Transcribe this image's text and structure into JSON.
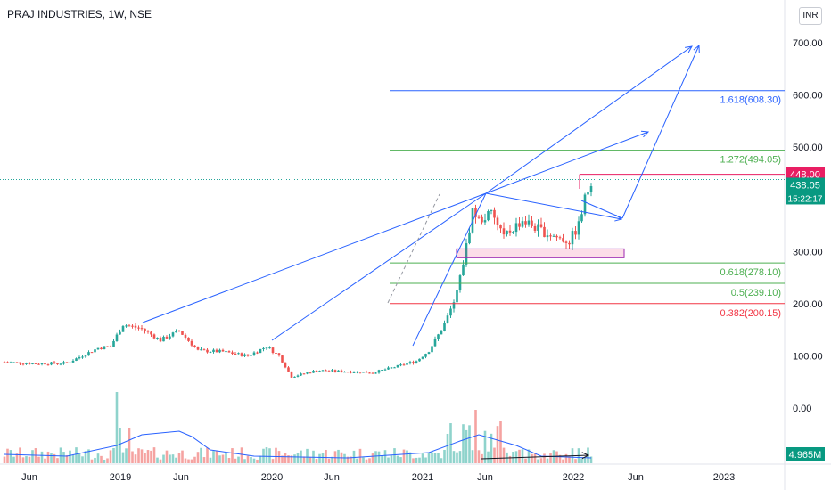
{
  "header": {
    "title": "PRAJ INDUSTRIES, 1W, NSE",
    "currency": "INR"
  },
  "colors": {
    "up": "#26a69a",
    "down": "#ef5350",
    "drawing": "#2962ff",
    "fib_green": "#4caf50",
    "fib_red": "#f23645",
    "highlight": "#e91e63"
  },
  "chart_data": {
    "type": "candlestick",
    "yaxis": {
      "ticks": [
        "700.00",
        "600.00",
        "500.00",
        "400.00",
        "300.00",
        "200.00",
        "100.00",
        "0.00"
      ]
    },
    "xaxis": {
      "ticks": [
        "Jun",
        "2019",
        "Jun",
        "2020",
        "Jun",
        "2021",
        "Jun",
        "2022",
        "Jun",
        "2023"
      ]
    },
    "fib_levels": [
      {
        "label": "1.618(608.30)",
        "value": 608.3,
        "color": "#2962ff"
      },
      {
        "label": "1.272(494.05)",
        "value": 494.05,
        "color": "#4caf50"
      },
      {
        "label": "0.618(278.10)",
        "value": 278.1,
        "color": "#4caf50"
      },
      {
        "label": "0.5(239.10)",
        "value": 239.1,
        "color": "#4caf50"
      },
      {
        "label": "0.382(200.15)",
        "value": 200.15,
        "color": "#f23645"
      }
    ],
    "price_labels": {
      "high_marker": "448.00",
      "last_price": "438.05",
      "countdown": "15:22:17",
      "volume": "4.965M"
    },
    "price_anchors": [
      {
        "w": 0,
        "p": 88
      },
      {
        "w": 10,
        "p": 85
      },
      {
        "w": 20,
        "p": 86
      },
      {
        "w": 30,
        "p": 115
      },
      {
        "w": 34,
        "p": 118
      },
      {
        "w": 38,
        "p": 160
      },
      {
        "w": 44,
        "p": 152
      },
      {
        "w": 50,
        "p": 130
      },
      {
        "w": 56,
        "p": 148
      },
      {
        "w": 62,
        "p": 110
      },
      {
        "w": 70,
        "p": 108
      },
      {
        "w": 78,
        "p": 100
      },
      {
        "w": 84,
        "p": 118
      },
      {
        "w": 88,
        "p": 100
      },
      {
        "w": 92,
        "p": 60
      },
      {
        "w": 100,
        "p": 72
      },
      {
        "w": 110,
        "p": 70
      },
      {
        "w": 118,
        "p": 68
      },
      {
        "w": 126,
        "p": 80
      },
      {
        "w": 132,
        "p": 90
      },
      {
        "w": 136,
        "p": 110
      },
      {
        "w": 140,
        "p": 150
      },
      {
        "w": 144,
        "p": 200
      },
      {
        "w": 146,
        "p": 250
      },
      {
        "w": 148,
        "p": 310
      },
      {
        "w": 150,
        "p": 380
      },
      {
        "w": 152,
        "p": 360
      },
      {
        "w": 156,
        "p": 372
      },
      {
        "w": 160,
        "p": 330
      },
      {
        "w": 166,
        "p": 360
      },
      {
        "w": 172,
        "p": 340
      },
      {
        "w": 178,
        "p": 325
      },
      {
        "w": 181,
        "p": 320
      },
      {
        "w": 184,
        "p": 350
      },
      {
        "w": 186,
        "p": 400
      },
      {
        "w": 188,
        "p": 438
      }
    ]
  }
}
